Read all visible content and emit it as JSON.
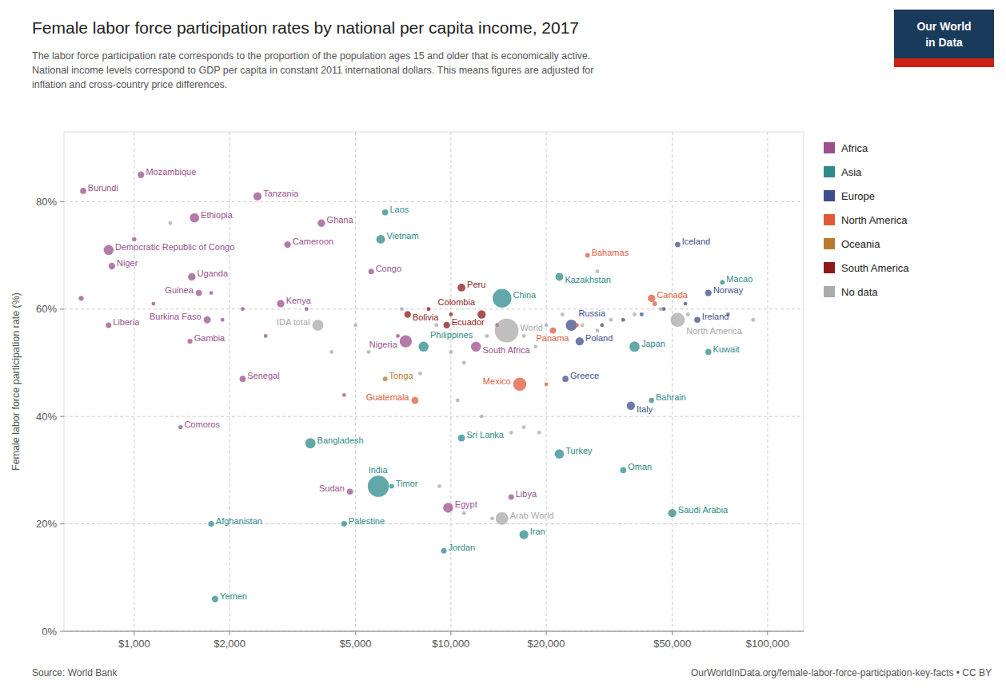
{
  "chart_data": {
    "type": "scatter",
    "title": "Female labor force participation rates by national per capita income, 2017",
    "subtitle": [
      "The labor force participation rate corresponds to the proportion of the population ages 15 and older that is economically active.",
      "National income levels correspond to GDP per capita in constant 2011 international dollars. This means figures are adjusted for",
      "inflation and cross-country price differences."
    ],
    "ylabel": "Female labor force participation rate (%)",
    "source": "Source: World Bank",
    "credit": "OurWorldInData.org/female-labor-force-participation-key-facts • CC BY",
    "logo": [
      "Our World",
      "in Data"
    ],
    "log": "x",
    "grid": true,
    "legend": "right",
    "xlim": [
      600,
      130000
    ],
    "ylim": [
      0,
      93
    ],
    "xticks": [
      {
        "value": 1000,
        "label": "$1,000"
      },
      {
        "value": 2000,
        "label": "$2,000"
      },
      {
        "value": 5000,
        "label": "$5,000"
      },
      {
        "value": 10000,
        "label": "$10,000"
      },
      {
        "value": 20000,
        "label": "$20,000"
      },
      {
        "value": 50000,
        "label": "$50,000"
      },
      {
        "value": 100000,
        "label": "$100,000"
      }
    ],
    "yticks": [
      {
        "value": 0,
        "label": "0%"
      },
      {
        "value": 20,
        "label": "20%"
      },
      {
        "value": 40,
        "label": "40%"
      },
      {
        "value": 60,
        "label": "60%"
      },
      {
        "value": 80,
        "label": "80%"
      }
    ],
    "series": [
      {
        "name": "Africa",
        "color": "#9b4f8e",
        "x": [
          690,
          1050,
          2450,
          1550,
          830,
          3900,
          850,
          1520,
          3050,
          5600,
          1600,
          2900,
          1700,
          830,
          1500,
          7200,
          2200,
          12000,
          1400,
          4800,
          9800,
          15500,
          680,
          1000,
          1150,
          1750,
          1900,
          2200,
          2600,
          3500,
          6800,
          4600
        ],
        "values": [
          82,
          85,
          81,
          77,
          71,
          76,
          68,
          66,
          72,
          67,
          63,
          61,
          58,
          57,
          54,
          54,
          47,
          53,
          38,
          26,
          23,
          25,
          62,
          73,
          61,
          63,
          58,
          60,
          55,
          60,
          55,
          44
        ],
        "sizes": [
          30,
          35,
          55,
          70,
          80,
          45,
          35,
          45,
          35,
          25,
          30,
          45,
          40,
          25,
          20,
          120,
          30,
          80,
          15,
          30,
          80,
          25,
          20,
          15,
          12,
          12,
          12,
          12,
          12,
          12,
          12,
          12
        ],
        "labels": [
          "Burundi",
          "Mozambique",
          "Tanzania",
          "Ethiopia",
          "Democratic Republic of Congo",
          "Ghana",
          "Niger",
          "Uganda",
          "Cameroon",
          "Congo",
          "Guinea",
          "Kenya",
          "Burkina Faso",
          "Liberia",
          "Gambia",
          "Nigeria",
          "Senegal",
          "South Africa",
          "Comoros",
          "Sudan",
          "Egypt",
          "Libya",
          null,
          null,
          null,
          null,
          null,
          null,
          null,
          null,
          null,
          null
        ]
      },
      {
        "name": "Asia",
        "color": "#2e8b8b",
        "x": [
          6200,
          6000,
          14500,
          8200,
          3600,
          10800,
          5900,
          6500,
          4600,
          1750,
          1800,
          17000,
          9500,
          22000,
          35000,
          50000,
          22000,
          43000,
          38000,
          65000,
          72000
        ],
        "values": [
          78,
          73,
          62,
          53,
          35,
          36,
          27,
          27,
          20,
          20,
          6,
          18,
          15,
          33,
          30,
          22,
          66,
          43,
          53,
          52,
          65
        ],
        "sizes": [
          30,
          60,
          280,
          80,
          85,
          40,
          360,
          18,
          25,
          28,
          35,
          65,
          25,
          70,
          30,
          55,
          50,
          22,
          85,
          30,
          18
        ],
        "labels": [
          "Laos",
          "Vietnam",
          "China",
          "Philippines",
          "Bangladesh",
          "Sri Lanka",
          "India",
          "Timor",
          "Palestine",
          "Afghanistan",
          "Yemen",
          "Iran",
          "Jordan",
          "Turkey",
          "Oman",
          "Saudi Arabia",
          "Kazakhstan",
          "Bahrain",
          "Japan",
          "Kuwait",
          "Macao"
        ]
      },
      {
        "name": "Europe",
        "color": "#3d4f8a",
        "x": [
          24000,
          25500,
          23000,
          37000,
          52000,
          65000,
          60000,
          30000,
          35000,
          40000,
          47000,
          55000,
          75000
        ],
        "values": [
          57,
          54,
          47,
          42,
          72,
          63,
          58,
          57,
          58,
          59,
          60,
          61,
          59
        ],
        "sizes": [
          100,
          55,
          30,
          55,
          22,
          35,
          30,
          12,
          12,
          12,
          12,
          12,
          12
        ],
        "labels": [
          "Russia",
          "Poland",
          "Greece",
          "Italy",
          "Iceland",
          "Norway",
          "Ireland",
          null,
          null,
          null,
          null,
          null,
          null
        ]
      },
      {
        "name": "North America",
        "color": "#e05a3a",
        "x": [
          16500,
          7700,
          27000,
          21000,
          43000,
          20000,
          25000,
          44000
        ],
        "values": [
          46,
          43,
          70,
          56,
          62,
          46,
          57,
          61
        ],
        "sizes": [
          140,
          40,
          18,
          30,
          45,
          12,
          12,
          18
        ],
        "labels": [
          "Mexico",
          "Guatemala",
          "Bahamas",
          "Panama",
          "Canada",
          null,
          null,
          null
        ]
      },
      {
        "name": "Oceania",
        "color": "#b87830",
        "x": [
          6200
        ],
        "values": [
          47
        ],
        "sizes": [
          18
        ],
        "labels": [
          "Tonga"
        ]
      },
      {
        "name": "South America",
        "color": "#8b1a1a",
        "x": [
          12500,
          10800,
          7300,
          9700,
          8500,
          10000,
          14000
        ],
        "values": [
          59,
          64,
          59,
          57,
          60,
          59,
          57
        ],
        "sizes": [
          55,
          50,
          35,
          35,
          12,
          12,
          12
        ],
        "labels": [
          "Colombia",
          "Peru",
          "Bolivia",
          "Ecuador",
          null,
          null,
          null
        ]
      },
      {
        "name": "No data",
        "color": "#aaaaaa",
        "x": [
          3800,
          14500,
          52000,
          15000,
          1300,
          4200,
          5000,
          5500,
          7000,
          8000,
          9000,
          10000,
          11000,
          13000,
          17000,
          18500,
          20000,
          22500,
          26000,
          29000,
          32000,
          38000,
          46000,
          56000,
          75000,
          90000,
          10500,
          12500,
          15500,
          17000,
          19000,
          29000,
          9200,
          11000,
          13500
        ],
        "values": [
          57,
          21,
          58,
          56,
          76,
          52,
          57,
          52,
          60,
          48,
          57,
          52,
          50,
          55,
          55,
          53,
          57,
          59,
          57,
          56,
          58,
          59,
          60,
          59,
          59,
          58,
          43,
          40,
          37,
          38,
          37,
          67,
          27,
          22,
          21
        ],
        "sizes": [
          100,
          130,
          160,
          450,
          12,
          12,
          12,
          12,
          12,
          12,
          12,
          12,
          12,
          12,
          12,
          12,
          12,
          12,
          12,
          12,
          12,
          12,
          12,
          12,
          12,
          12,
          12,
          12,
          12,
          12,
          12,
          12,
          12,
          12,
          12
        ],
        "labels": [
          "IDA total",
          "Arab World",
          "North America",
          "World",
          null,
          null,
          null,
          null,
          null,
          null,
          null,
          null,
          null,
          null,
          null,
          null,
          null,
          null,
          null,
          null,
          null,
          null,
          null,
          null,
          null,
          null,
          null,
          null,
          null,
          null,
          null,
          null,
          null,
          null,
          null
        ]
      }
    ]
  }
}
